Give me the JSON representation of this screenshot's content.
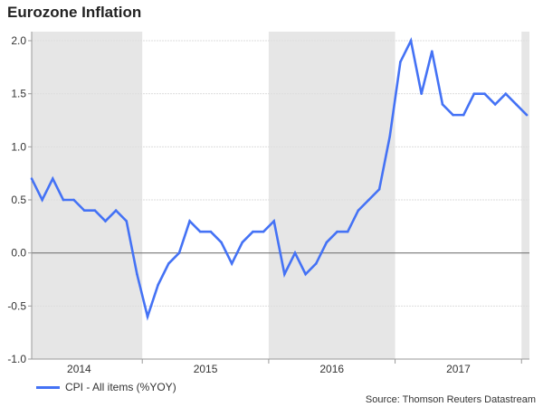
{
  "chart_data": {
    "type": "line",
    "title": "Eurozone Inflation",
    "xlabel": "",
    "ylabel": "",
    "ylim": [
      -1.0,
      2.0
    ],
    "yticks": [
      "2.0",
      "1.5",
      "1.0",
      "0.5",
      "0.0",
      "-0.5",
      "-1.0"
    ],
    "ytick_values": [
      2.0,
      1.5,
      1.0,
      0.5,
      0.0,
      -0.5,
      -1.0
    ],
    "x_tick_labels": [
      "2014",
      "2015",
      "2016",
      "2017"
    ],
    "grid": true,
    "shaded_years": [
      "2014",
      "2016",
      "2018"
    ],
    "x": [
      "2014-02",
      "2014-03",
      "2014-04",
      "2014-05",
      "2014-06",
      "2014-07",
      "2014-08",
      "2014-09",
      "2014-10",
      "2014-11",
      "2014-12",
      "2015-01",
      "2015-02",
      "2015-03",
      "2015-04",
      "2015-05",
      "2015-06",
      "2015-07",
      "2015-08",
      "2015-09",
      "2015-10",
      "2015-11",
      "2015-12",
      "2016-01",
      "2016-02",
      "2016-03",
      "2016-04",
      "2016-05",
      "2016-06",
      "2016-07",
      "2016-08",
      "2016-09",
      "2016-10",
      "2016-11",
      "2016-12",
      "2017-01",
      "2017-02",
      "2017-03",
      "2017-04",
      "2017-05",
      "2017-06",
      "2017-07",
      "2017-08",
      "2017-09",
      "2017-10",
      "2017-11",
      "2017-12",
      "2018-01"
    ],
    "series": [
      {
        "name": "CPI - All items (%YOY)",
        "color": "#4472f5",
        "values": [
          0.7,
          0.5,
          0.7,
          0.5,
          0.5,
          0.4,
          0.4,
          0.3,
          0.4,
          0.3,
          -0.2,
          -0.6,
          -0.3,
          -0.1,
          0.0,
          0.3,
          0.2,
          0.2,
          0.1,
          -0.1,
          0.1,
          0.2,
          0.2,
          0.3,
          -0.2,
          0.0,
          -0.2,
          -0.1,
          0.1,
          0.2,
          0.2,
          0.4,
          0.5,
          0.6,
          1.1,
          1.8,
          2.0,
          1.5,
          1.9,
          1.4,
          1.3,
          1.3,
          1.5,
          1.5,
          1.4,
          1.5,
          1.4,
          1.3
        ]
      }
    ],
    "legend_position": "bottom-left",
    "source": "Source: Thomson Reuters Datastream"
  }
}
